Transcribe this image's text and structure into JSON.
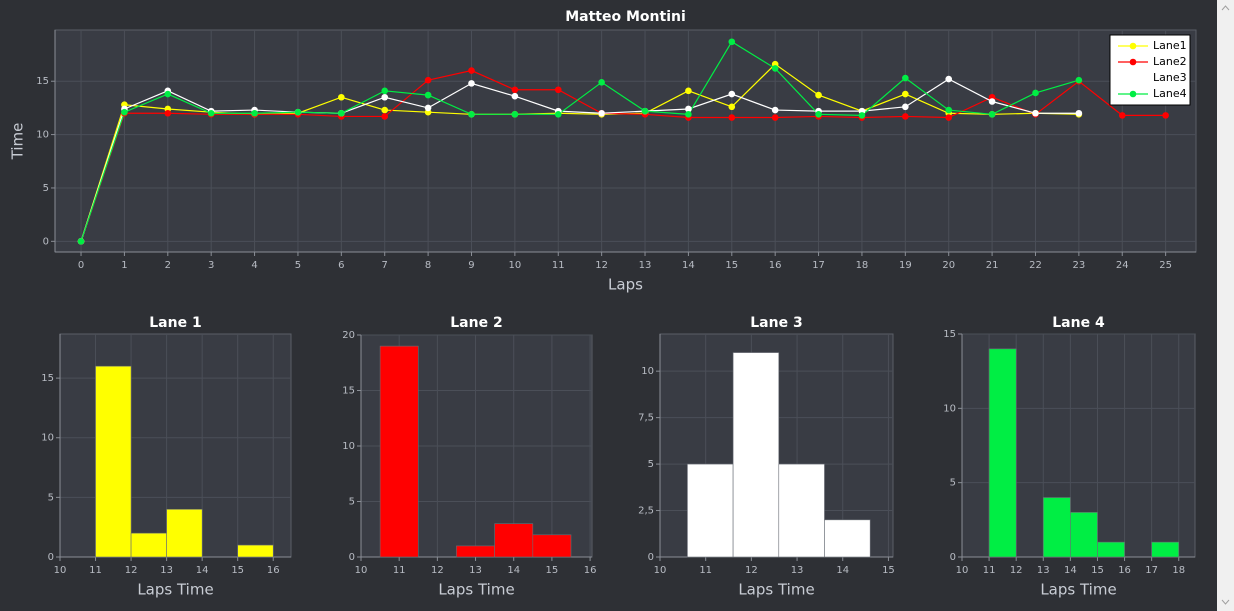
{
  "chart_data": [
    {
      "type": "line",
      "title": "Matteo Montini",
      "xlabel": "Laps",
      "ylabel": "Time",
      "x": [
        0,
        1,
        2,
        3,
        4,
        5,
        6,
        7,
        8,
        9,
        10,
        11,
        12,
        13,
        14,
        15,
        16,
        17,
        18,
        19,
        20,
        21,
        22,
        23,
        24,
        25
      ],
      "series": [
        {
          "name": "Lane1",
          "color": "#ffff00",
          "values": [
            0,
            12.8,
            12.4,
            12.1,
            11.9,
            12.0,
            13.5,
            12.3,
            12.1,
            11.9,
            11.9,
            12.0,
            11.9,
            12.0,
            14.1,
            12.6,
            16.6,
            13.7,
            12.2,
            13.8,
            12.0,
            11.9,
            12.0,
            11.9,
            null,
            null
          ]
        },
        {
          "name": "Lane2",
          "color": "#ff0000",
          "values": [
            0,
            12.0,
            12.0,
            11.9,
            11.9,
            11.9,
            11.7,
            11.7,
            15.1,
            16.0,
            14.2,
            14.2,
            12.0,
            11.9,
            11.6,
            11.6,
            11.6,
            11.7,
            11.6,
            11.7,
            11.6,
            13.5,
            11.9,
            15.0,
            11.8,
            11.8
          ]
        },
        {
          "name": "Lane3",
          "color": "#ffffff",
          "values": [
            0,
            12.4,
            14.1,
            12.2,
            12.3,
            12.1,
            12.0,
            13.5,
            12.5,
            14.8,
            13.6,
            12.2,
            12.0,
            12.2,
            12.4,
            13.8,
            12.3,
            12.2,
            12.2,
            12.6,
            15.2,
            13.1,
            12.0,
            12.0,
            null,
            null
          ]
        },
        {
          "name": "Lane4",
          "color": "#00ee44",
          "values": [
            0,
            12.1,
            13.8,
            12.0,
            12.0,
            12.1,
            12.0,
            14.1,
            13.7,
            11.9,
            11.9,
            11.9,
            14.9,
            12.2,
            11.9,
            18.7,
            16.2,
            11.9,
            11.8,
            15.3,
            12.3,
            11.9,
            13.9,
            15.1,
            null,
            null
          ]
        }
      ],
      "xlim": [
        -0.6,
        25.7
      ],
      "xticks": [
        0,
        1,
        2,
        3,
        4,
        5,
        6,
        7,
        8,
        9,
        10,
        11,
        12,
        13,
        14,
        15,
        16,
        17,
        18,
        19,
        20,
        21,
        22,
        23,
        24,
        25
      ],
      "ylim": [
        -1,
        19.8
      ],
      "yticks": [
        0,
        5,
        10,
        15
      ],
      "grid": true,
      "legend": "upper right"
    },
    {
      "type": "histogram",
      "title": "Lane 1",
      "xlabel": "Laps Time",
      "color": "#ffff00",
      "bins": [
        11,
        12,
        13,
        14,
        15,
        16
      ],
      "values": [
        16,
        2,
        4,
        0,
        1
      ],
      "xlim": [
        10,
        16.5
      ],
      "xticks": [
        10,
        11,
        12,
        13,
        14,
        15,
        16
      ],
      "ylim": [
        0,
        18.7
      ],
      "yticks": [
        0,
        5,
        10,
        15
      ],
      "grid": true
    },
    {
      "type": "histogram",
      "title": "Lane 2",
      "xlabel": "Laps Time",
      "color": "#ff0000",
      "bins": [
        10.5,
        11.5,
        12.5,
        13.5,
        14.5,
        15.5
      ],
      "values": [
        19,
        0,
        1,
        3,
        2
      ],
      "xlim": [
        10,
        16.05
      ],
      "xticks": [
        10,
        11,
        12,
        13,
        14,
        15,
        16
      ],
      "ylim": [
        0,
        20
      ],
      "yticks": [
        0,
        5,
        10,
        15,
        20
      ],
      "grid": true
    },
    {
      "type": "histogram",
      "title": "Lane 3",
      "xlabel": "Laps Time",
      "color": "#ffffff",
      "bins": [
        10.6,
        11.6,
        12.6,
        13.6,
        14.6
      ],
      "values": [
        5,
        11,
        5,
        2
      ],
      "xlim": [
        10,
        15.1
      ],
      "xticks": [
        10,
        11,
        12,
        13,
        14,
        15
      ],
      "ylim": [
        0,
        12
      ],
      "yticks": [
        0,
        {
          "value": 2.5,
          "label": "2,5"
        },
        5,
        {
          "value": 7.5,
          "label": "7,5"
        },
        10
      ],
      "grid": true
    },
    {
      "type": "histogram",
      "title": "Lane 4",
      "xlabel": "Laps Time",
      "color": "#00ee44",
      "bins": [
        11,
        12,
        13,
        14,
        15,
        16,
        17,
        18
      ],
      "values": [
        14,
        0,
        4,
        3,
        1,
        0,
        1
      ],
      "xlim": [
        10,
        18.6
      ],
      "xticks": [
        10,
        11,
        12,
        13,
        14,
        15,
        16,
        17,
        18
      ],
      "ylim": [
        0,
        15
      ],
      "yticks": [
        0,
        5,
        10,
        15
      ],
      "grid": true
    }
  ]
}
